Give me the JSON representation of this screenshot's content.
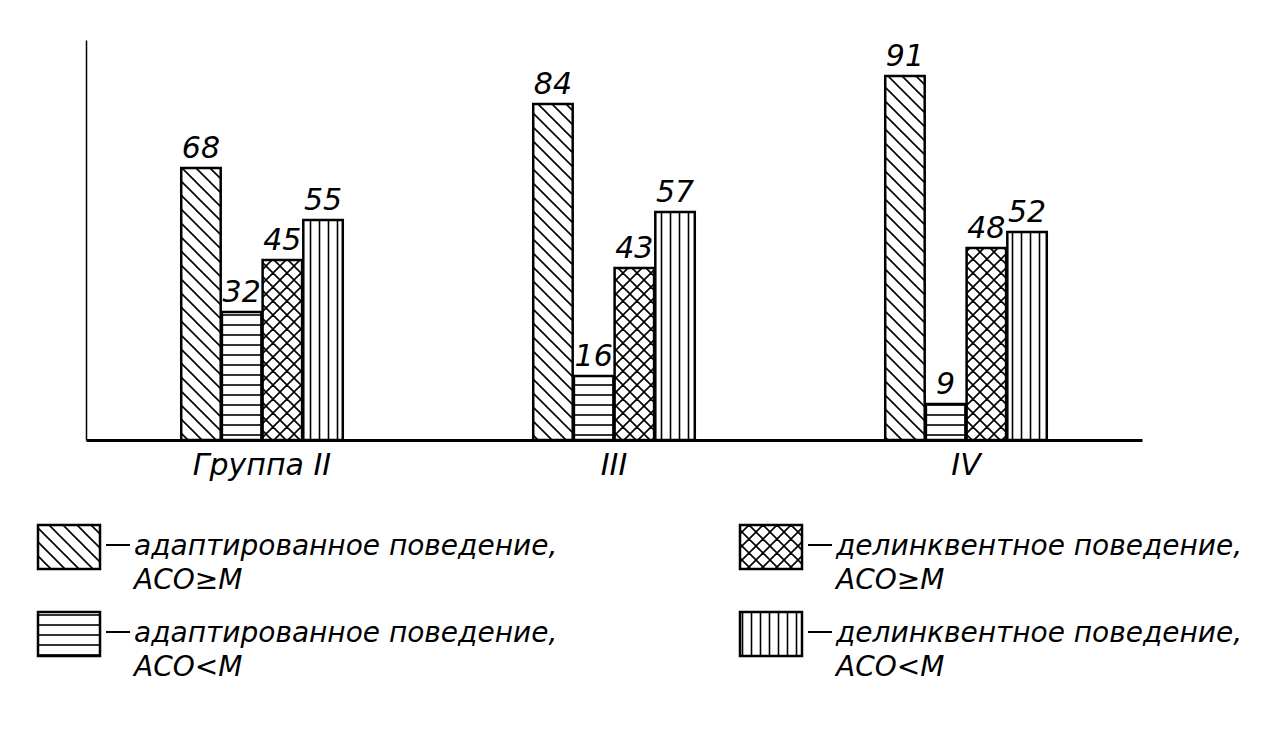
{
  "chart_data": {
    "type": "bar",
    "categories": [
      "Группа II",
      "III",
      "IV"
    ],
    "series": [
      {
        "name": "адаптированное поведение, АСО≥М",
        "color": "#000000",
        "values": [
          68,
          84,
          91
        ]
      },
      {
        "name": "адаптированное поведение, АСО<М",
        "color": "#000000",
        "values": [
          32,
          16,
          9
        ]
      },
      {
        "name": "делинквентное поведение, АСО≥М",
        "color": "#000000",
        "values": [
          45,
          43,
          48
        ]
      },
      {
        "name": "делинквентное поведение, АСО<М",
        "color": "#000000",
        "values": [
          55,
          57,
          52
        ]
      }
    ],
    "ylim": [
      0,
      100
    ],
    "yticks": [],
    "grid": false,
    "legend": "bottom",
    "data_labels": true,
    "tick_labels": "x"
  }
}
